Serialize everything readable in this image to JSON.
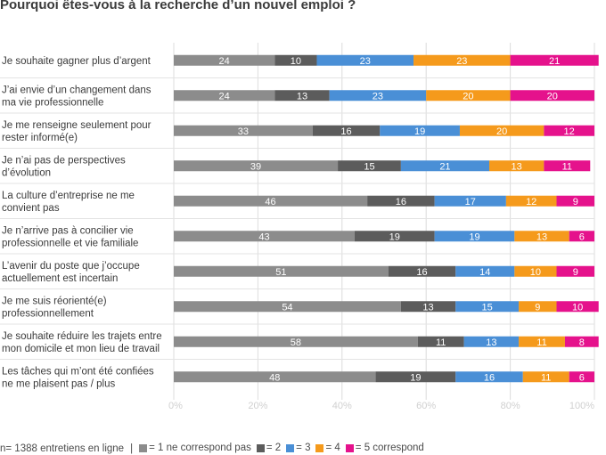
{
  "title": "Pourquoi êtes-vous à la recherche d’un nouvel emploi ?",
  "footer": {
    "sample": "n= 1388 entretiens en ligne",
    "separator": "|"
  },
  "colors": {
    "s1": "#8c8c8c",
    "s2": "#5c5c5c",
    "s3": "#4a8fd6",
    "s4": "#f59a1c",
    "s5": "#e5128c",
    "grid": "#dcdcdc"
  },
  "chart_data": {
    "type": "bar",
    "orientation": "horizontal",
    "stacked": true,
    "title": "Pourquoi êtes-vous à la recherche d’un nouvel emploi ?",
    "xlim": [
      0,
      100
    ],
    "x_ticks": [
      "0%",
      "20%",
      "40%",
      "60%",
      "80%",
      "100%"
    ],
    "grid": true,
    "legend_position": "bottom",
    "categories": [
      [
        "Je souhaite gagner plus d’argent"
      ],
      [
        "J’ai envie d’un changement dans",
        "ma vie professionnelle"
      ],
      [
        "Je me renseigne seulement pour",
        "rester informé(e)"
      ],
      [
        "Je n’ai pas de perspectives",
        "d’évolution"
      ],
      [
        "La culture d’entreprise ne me",
        "convient pas"
      ],
      [
        "Je n’arrive pas à concilier vie",
        "professionnelle et vie familiale"
      ],
      [
        "L’avenir du poste que j’occupe",
        "actuellement est incertain"
      ],
      [
        "Je me suis réorienté(e)",
        "professionnellement"
      ],
      [
        "Je souhaite réduire les trajets entre",
        "mon domicile et mon lieu de travail"
      ],
      [
        "Les tâches qui m’ont été confiées",
        "ne me plaisent pas / plus"
      ]
    ],
    "series": [
      {
        "name": "= 1 ne correspond pas",
        "values": [
          24,
          24,
          33,
          39,
          46,
          43,
          51,
          54,
          58,
          48
        ]
      },
      {
        "name": "= 2",
        "values": [
          10,
          13,
          16,
          15,
          16,
          19,
          16,
          13,
          11,
          19
        ]
      },
      {
        "name": "= 3",
        "values": [
          23,
          23,
          19,
          21,
          17,
          19,
          14,
          15,
          13,
          16
        ]
      },
      {
        "name": "= 4",
        "values": [
          23,
          20,
          20,
          13,
          12,
          13,
          10,
          9,
          11,
          11
        ]
      },
      {
        "name": "= 5 correspond",
        "values": [
          21,
          20,
          12,
          11,
          9,
          6,
          9,
          10,
          8,
          6
        ]
      }
    ]
  }
}
